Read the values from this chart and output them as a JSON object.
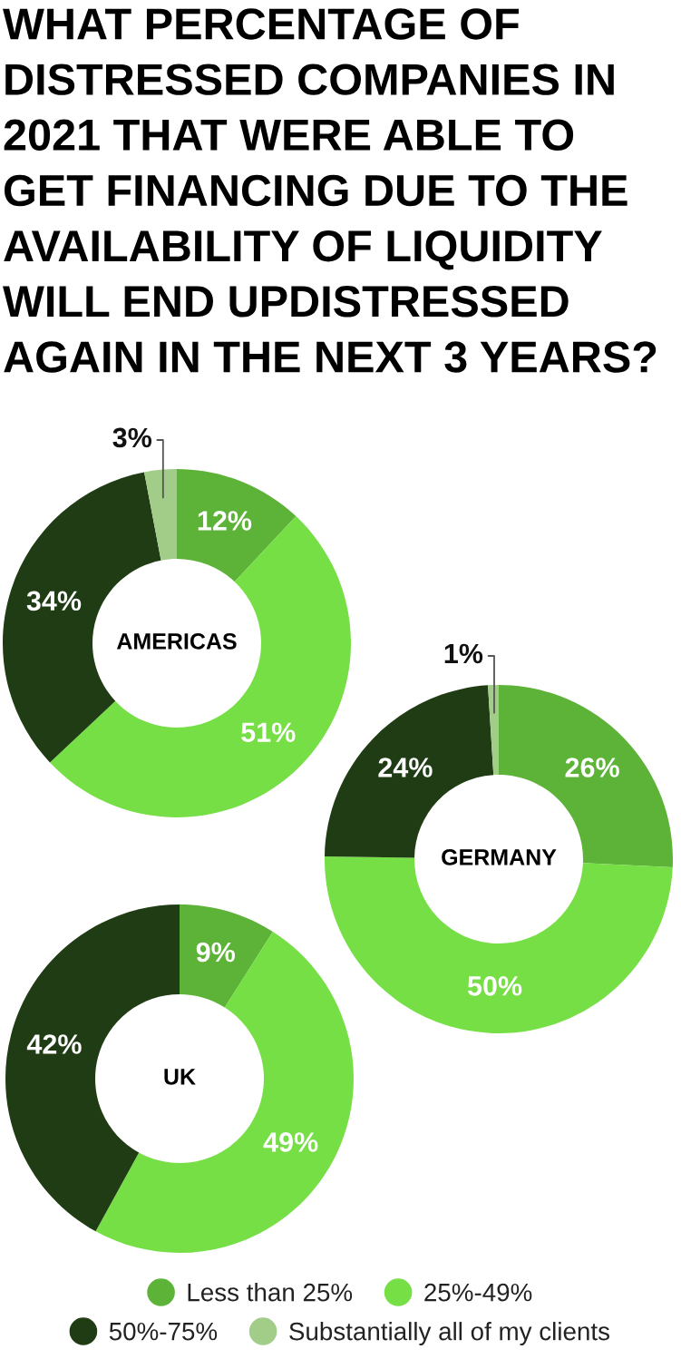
{
  "chart_data": {
    "type": "donut",
    "title": "WHAT PERCENTAGE OF\nDISTRESSED COMPANIES IN\n2021 THAT WERE ABLE TO\nGET FINANCING DUE TO THE\nAVAILABILITY OF LIQUIDITY\nWILL END UPDISTRESSED\nAGAIN IN THE NEXT 3 YEARS?",
    "categories": [
      "Less than 25%",
      "25%-49%",
      "50%-75%",
      "Substantially all of my clients"
    ],
    "colors": [
      "#5db338",
      "#76df46",
      "#203c14",
      "#a1cd89"
    ],
    "series": [
      {
        "name": "AMERICAS",
        "values": [
          12,
          51,
          34,
          3
        ],
        "value_labels": [
          "12%",
          "51%",
          "34%",
          "3%"
        ]
      },
      {
        "name": "GERMANY",
        "values": [
          26,
          50,
          24,
          1
        ],
        "value_labels": [
          "26%",
          "50%",
          "24%",
          "1%"
        ]
      },
      {
        "name": "UK",
        "values": [
          9,
          49,
          42,
          null
        ],
        "value_labels": [
          "9%",
          "49%",
          "42%",
          null
        ]
      }
    ],
    "legend": "bottom"
  }
}
